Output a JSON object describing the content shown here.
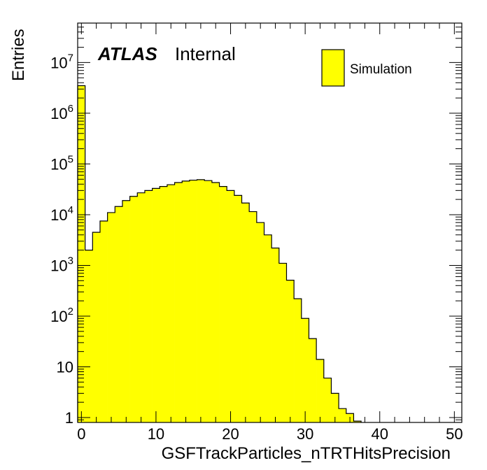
{
  "chart_data": {
    "type": "bar",
    "xlabel": "GSFTrackParticles_nTRTHitsPrecision",
    "ylabel": "Entries",
    "label_bold": "ATLAS",
    "label_text": "Internal",
    "fill_color": "#ffff00",
    "line_color": "#000000",
    "log_y": true,
    "grid": false,
    "xlim": [
      -0.5,
      51
    ],
    "ylim": [
      0.8,
      60000000
    ],
    "x_ticks": [
      0,
      10,
      20,
      30,
      40,
      50
    ],
    "y_ticks": [
      {
        "value": 1,
        "base": "1",
        "exp": ""
      },
      {
        "value": 10,
        "base": "10",
        "exp": ""
      },
      {
        "value": 100,
        "base": "10",
        "exp": "2"
      },
      {
        "value": 1000,
        "base": "10",
        "exp": "3"
      },
      {
        "value": 10000,
        "base": "10",
        "exp": "4"
      },
      {
        "value": 100000,
        "base": "10",
        "exp": "5"
      },
      {
        "value": 1000000,
        "base": "10",
        "exp": "6"
      },
      {
        "value": 10000000,
        "base": "10",
        "exp": "7"
      }
    ],
    "legend": {
      "position": "top-right",
      "entries": [
        {
          "name": "Simulation",
          "color": "#ffff00"
        }
      ]
    },
    "bin_width": 1,
    "bins_start": -0.5,
    "values": [
      3500000,
      2000,
      4500,
      7500,
      11000,
      14500,
      19000,
      23000,
      27000,
      30000,
      33000,
      36000,
      39000,
      43000,
      46000,
      48000,
      49000,
      47000,
      43000,
      36000,
      30000,
      24000,
      17000,
      11500,
      7000,
      4000,
      2200,
      1100,
      510,
      220,
      90,
      36,
      14,
      6,
      3,
      1.5,
      1.2,
      0.85
    ]
  }
}
